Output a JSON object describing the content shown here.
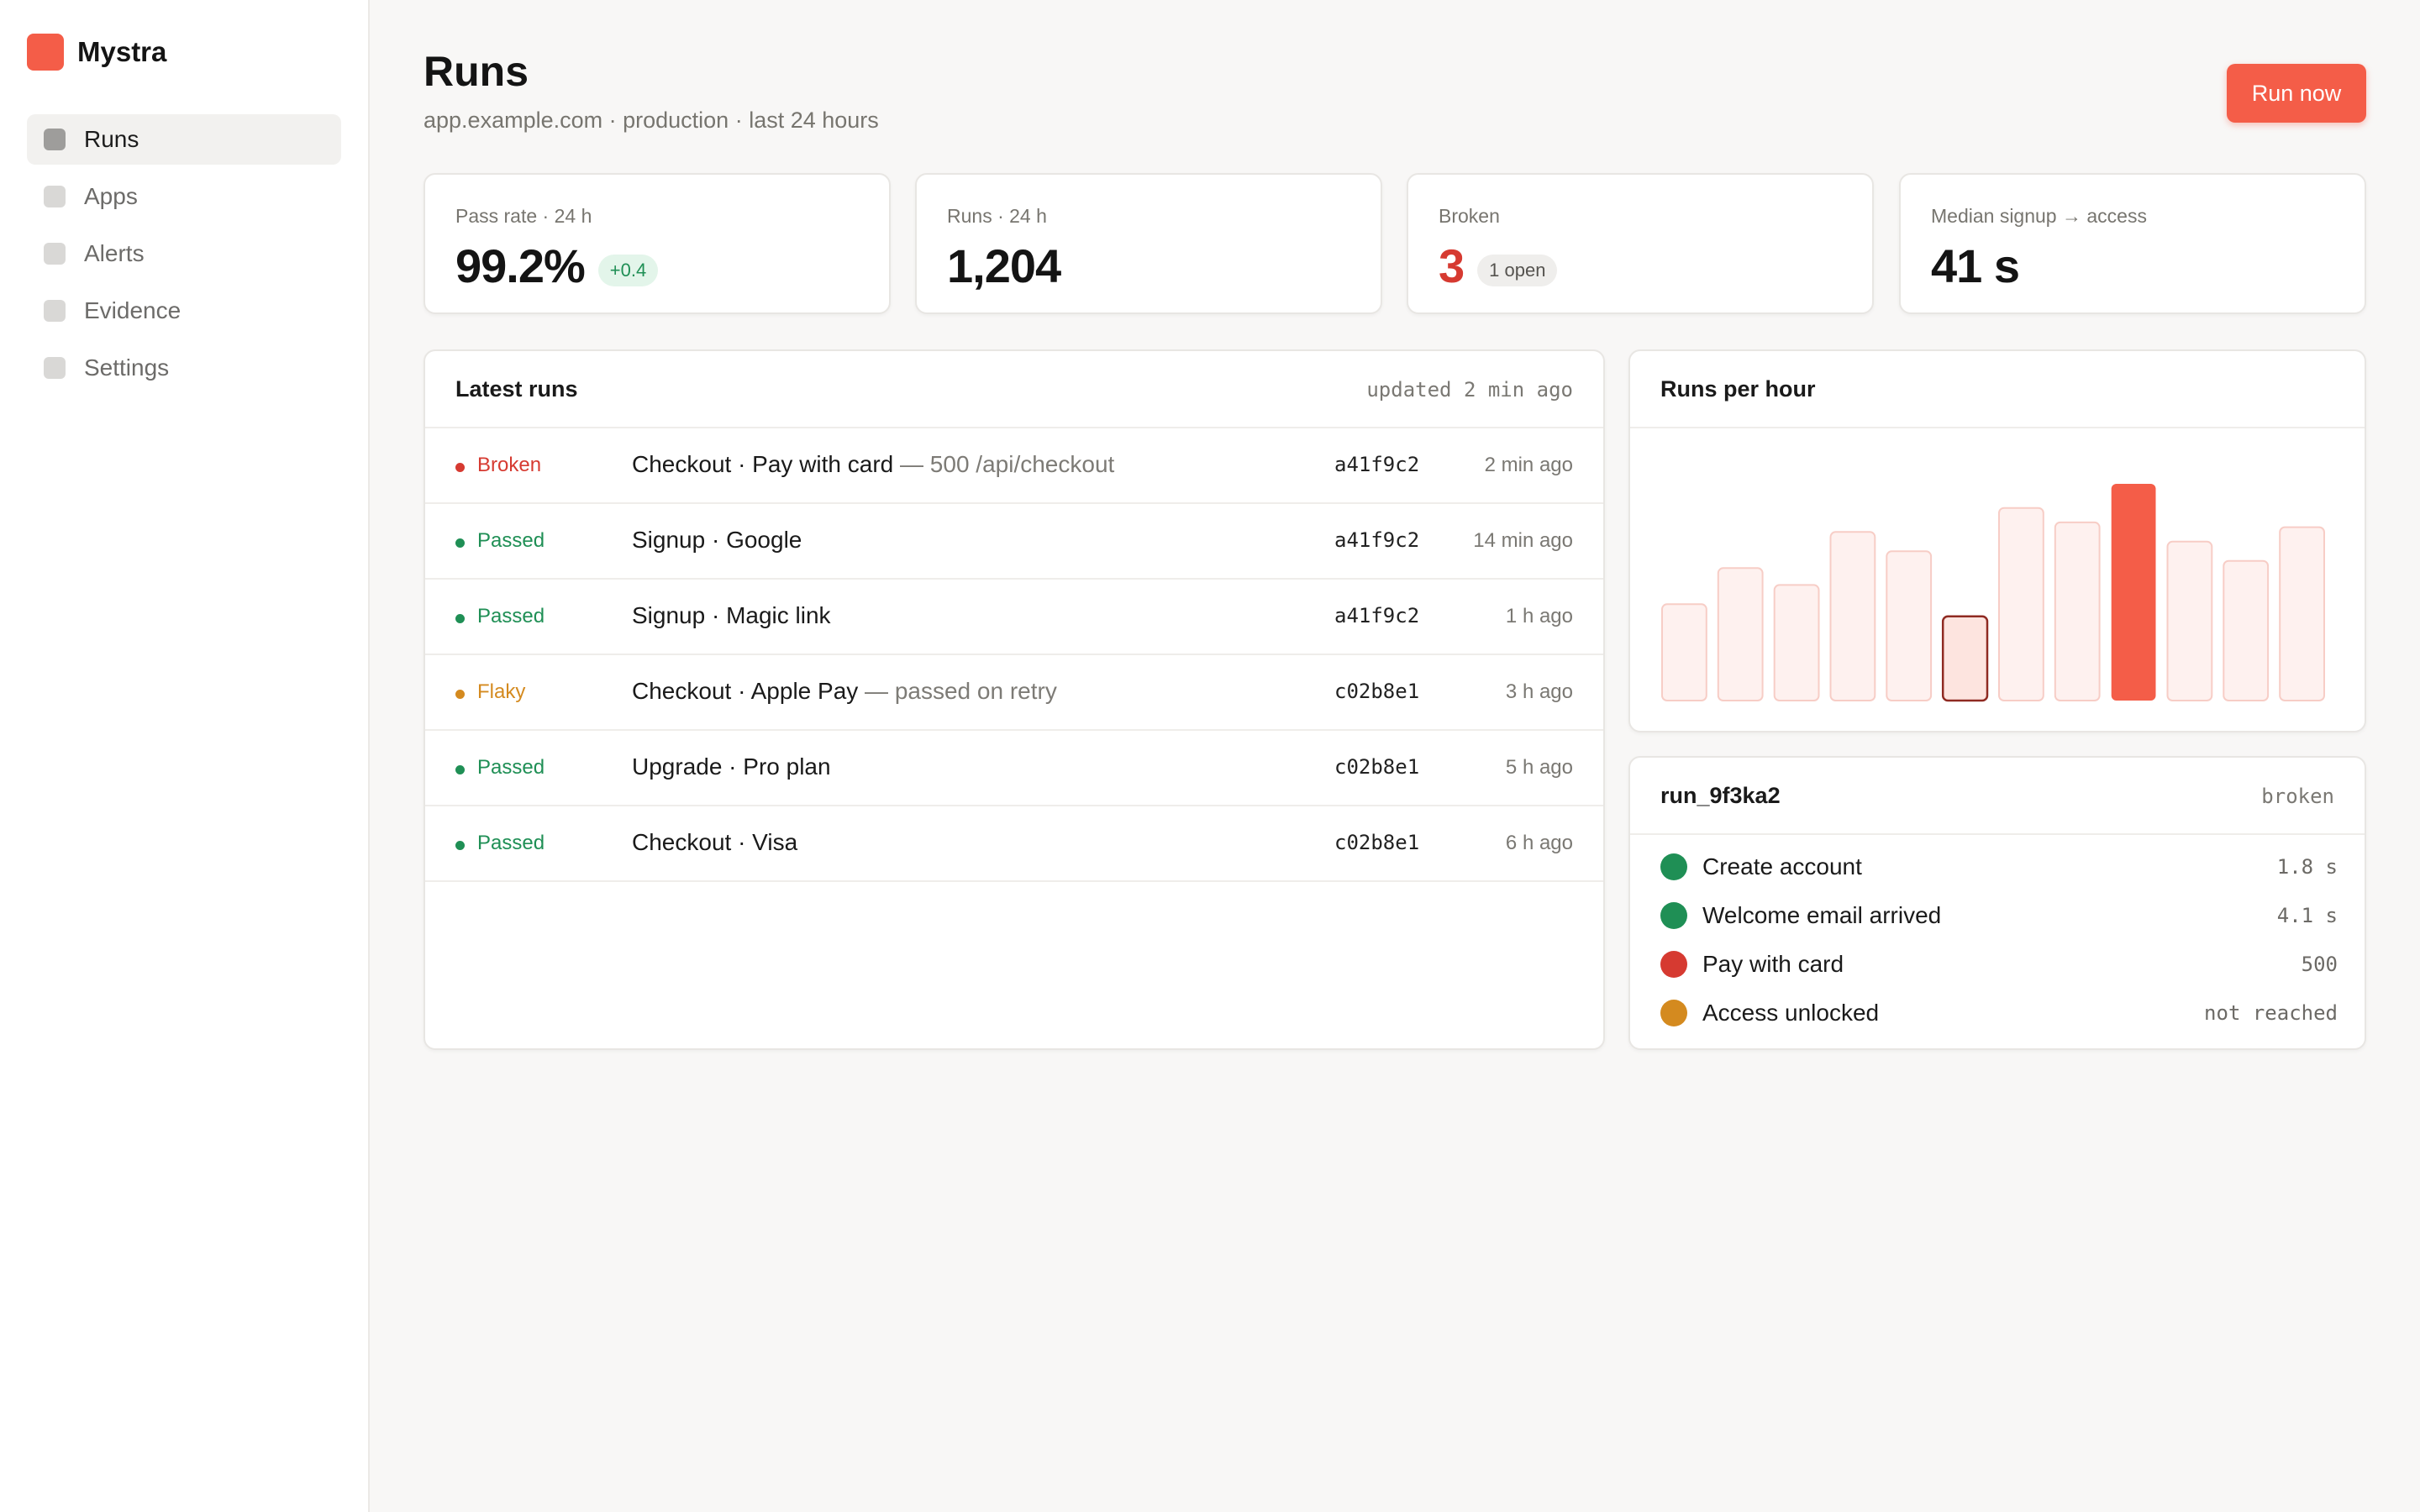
{
  "app": {
    "name": "Mystra",
    "brand_color": "#f45d48"
  },
  "sidebar": {
    "items": [
      {
        "label": "Runs",
        "active": true
      },
      {
        "label": "Apps",
        "active": false
      },
      {
        "label": "Alerts",
        "active": false
      },
      {
        "label": "Evidence",
        "active": false
      },
      {
        "label": "Settings",
        "active": false
      }
    ]
  },
  "header": {
    "title": "Runs",
    "subtitle": "app.example.com · production · last 24 hours",
    "run_now_label": "Run now"
  },
  "stats": [
    {
      "label": "Pass rate · 24 h",
      "value": "99.2%",
      "badge": "+0.4"
    },
    {
      "label": "Runs · 24 h",
      "value": "1,204"
    },
    {
      "label": "Broken",
      "value": "3",
      "badge": "1 open"
    },
    {
      "label": "Median signup → access",
      "value": "41 s"
    }
  ],
  "latest_runs": {
    "title": "Latest runs",
    "updated": "updated 2 min ago",
    "rows": [
      {
        "status": "Broken",
        "name": "Checkout · Pay with card",
        "detail": "— 500 /api/checkout",
        "commit": "a41f9c2",
        "time": "2 min ago"
      },
      {
        "status": "Passed",
        "name": "Signup · Google",
        "detail": "",
        "commit": "a41f9c2",
        "time": "14 min ago"
      },
      {
        "status": "Passed",
        "name": "Signup · Magic link",
        "detail": "",
        "commit": "a41f9c2",
        "time": "1 h ago"
      },
      {
        "status": "Flaky",
        "name": "Checkout · Apple Pay",
        "detail": "— passed on retry",
        "commit": "c02b8e1",
        "time": "3 h ago"
      },
      {
        "status": "Passed",
        "name": "Upgrade · Pro plan",
        "detail": "",
        "commit": "c02b8e1",
        "time": "5 h ago"
      },
      {
        "status": "Passed",
        "name": "Checkout · Visa",
        "detail": "",
        "commit": "c02b8e1",
        "time": "6 h ago"
      }
    ]
  },
  "status_colors": {
    "Broken": "#d63a31",
    "Passed": "#1f8f55",
    "Flaky": "#d48a1f"
  },
  "runs_per_hour": {
    "title": "Runs per hour",
    "chart_data": {
      "type": "bar",
      "values": [
        40,
        55,
        48,
        70,
        62,
        35,
        80,
        74,
        90,
        66,
        58,
        72
      ],
      "highlight_peak": 8,
      "highlight_outline": 5
    }
  },
  "run_detail": {
    "id": "run_9f3ka2",
    "state": "broken",
    "steps": [
      {
        "label": "Create account",
        "value": "1.8 s",
        "status": "Passed"
      },
      {
        "label": "Welcome email arrived",
        "value": "4.1 s",
        "status": "Passed"
      },
      {
        "label": "Pay with card",
        "value": "500",
        "status": "Broken"
      },
      {
        "label": "Access unlocked",
        "value": "not reached",
        "status": "Flaky"
      }
    ]
  }
}
